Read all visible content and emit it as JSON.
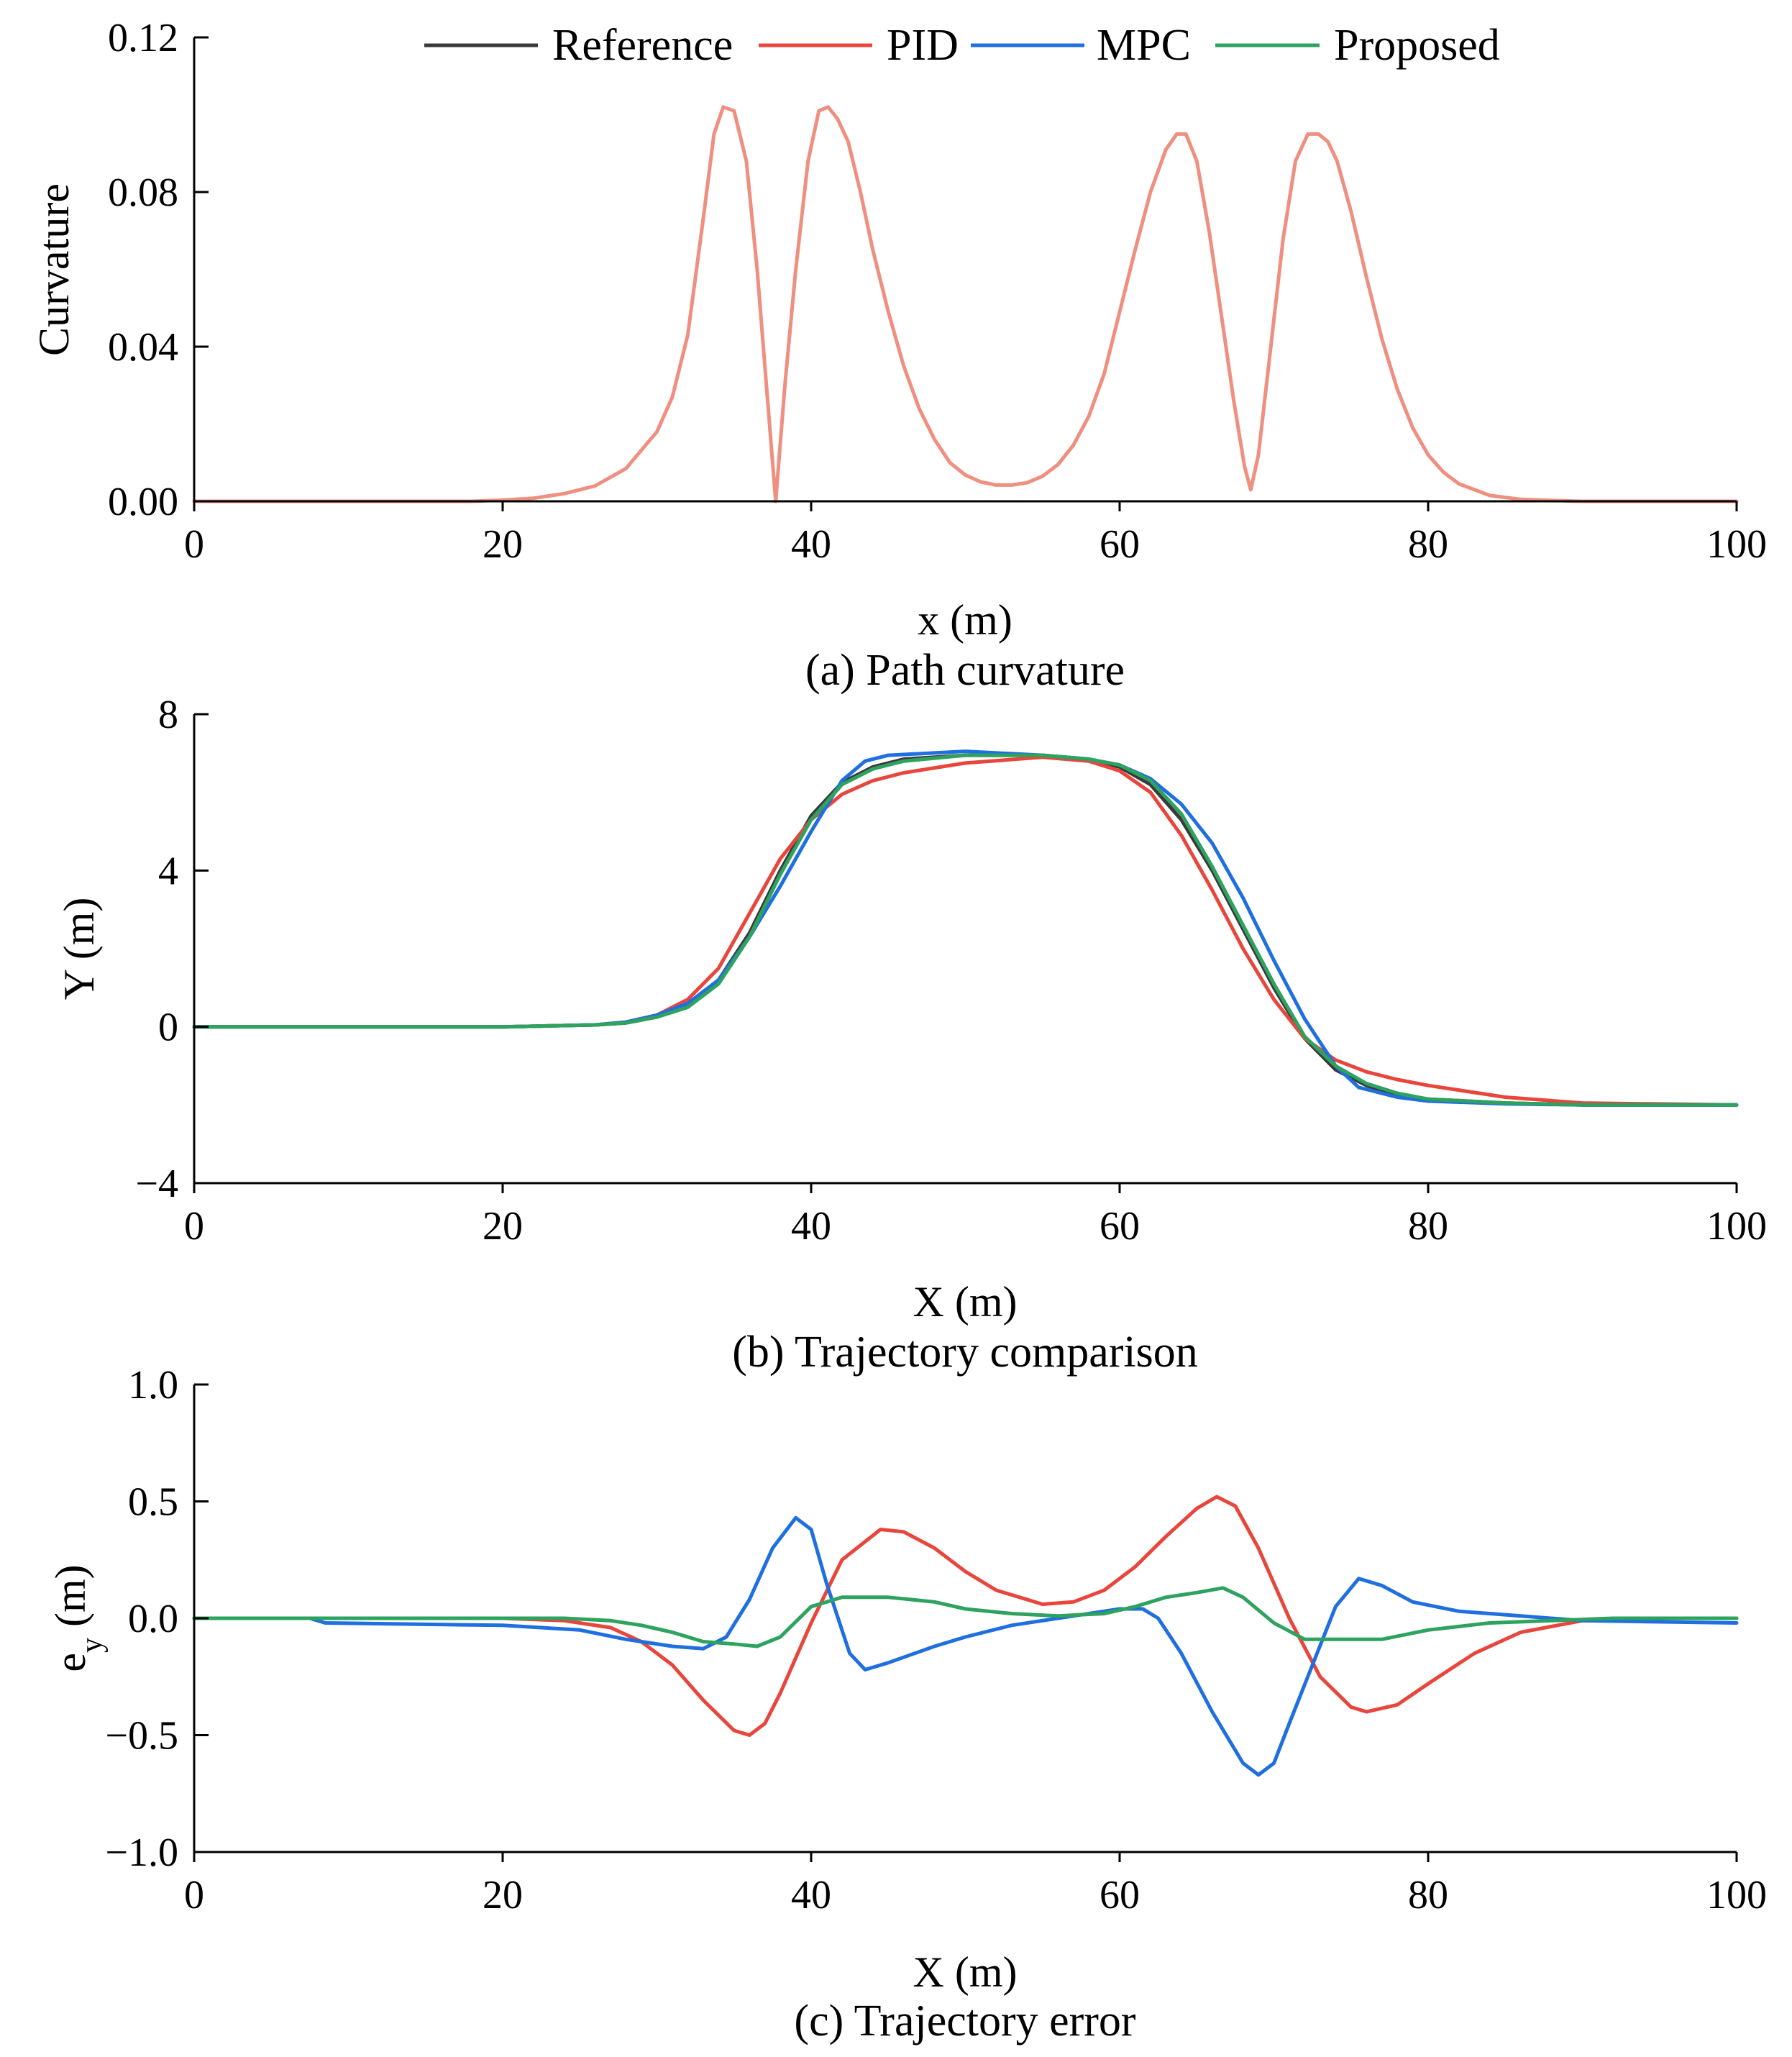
{
  "legend": {
    "entries": [
      {
        "name": "Reference",
        "color": "#3a3a3a"
      },
      {
        "name": "PID",
        "color": "#e8463c"
      },
      {
        "name": "MPC",
        "color": "#1f6fe0"
      },
      {
        "name": "Proposed",
        "color": "#2ea35f"
      }
    ]
  },
  "captions": {
    "a": "(a) Path curvature",
    "b": "(b) Trajectory comparison",
    "c": "(c) Trajectory error"
  },
  "chart_data": [
    {
      "type": "line",
      "title": "(a) Path curvature",
      "xlabel": "x (m)",
      "ylabel": "Curvature",
      "xlim": [
        0,
        100
      ],
      "ylim": [
        0,
        0.12
      ],
      "xticks": [
        0,
        20,
        40,
        60,
        80,
        100
      ],
      "xtick_labels": [
        "0",
        "20",
        "40",
        "60",
        "80",
        "100"
      ],
      "yticks": [
        0,
        0.04,
        0.08,
        0.12
      ],
      "ytick_labels": [
        "0.00",
        "0.04",
        "0.08",
        "0.12"
      ],
      "series": [
        {
          "name": "Curvature",
          "color": "#ef8f80",
          "x": [
            0,
            10,
            18,
            20,
            22,
            24,
            26,
            28,
            30,
            31,
            32,
            33,
            33.7,
            34.3,
            35,
            35.8,
            36.5,
            37.1,
            37.7,
            38.3,
            39,
            39.8,
            40.5,
            41.1,
            41.7,
            42.4,
            43.2,
            44,
            45,
            46,
            47,
            48,
            49,
            50,
            51,
            52,
            53,
            54,
            55,
            56,
            57,
            58,
            59,
            60,
            61,
            62,
            63,
            63.7,
            64.3,
            65,
            65.8,
            66.6,
            67.4,
            68.1,
            68.5,
            69,
            69.8,
            70.6,
            71.4,
            72.2,
            72.9,
            73.5,
            74.1,
            75,
            76,
            77,
            78,
            79,
            80,
            81,
            82,
            84,
            86,
            88,
            90,
            92,
            95,
            100
          ],
          "y": [
            0,
            0,
            0,
            0.0003,
            0.0008,
            0.002,
            0.004,
            0.0085,
            0.018,
            0.027,
            0.043,
            0.073,
            0.095,
            0.102,
            0.101,
            0.088,
            0.06,
            0.03,
            0,
            0.03,
            0.06,
            0.088,
            0.101,
            0.102,
            0.099,
            0.093,
            0.08,
            0.065,
            0.049,
            0.035,
            0.024,
            0.016,
            0.01,
            0.0068,
            0.005,
            0.0042,
            0.0042,
            0.0048,
            0.0065,
            0.0095,
            0.0145,
            0.022,
            0.033,
            0.049,
            0.065,
            0.08,
            0.091,
            0.095,
            0.095,
            0.088,
            0.07,
            0.048,
            0.026,
            0.009,
            0.003,
            0.012,
            0.04,
            0.068,
            0.088,
            0.095,
            0.095,
            0.093,
            0.088,
            0.075,
            0.058,
            0.042,
            0.029,
            0.019,
            0.012,
            0.0075,
            0.0045,
            0.0015,
            0.0005,
            0.0002,
            0,
            0,
            0,
            0
          ]
        }
      ]
    },
    {
      "type": "line",
      "title": "(b) Trajectory comparison",
      "xlabel": "X (m)",
      "ylabel": "Y (m)",
      "xlim": [
        0,
        100
      ],
      "ylim": [
        -4,
        8
      ],
      "xticks": [
        0,
        20,
        40,
        60,
        80,
        100
      ],
      "xtick_labels": [
        "0",
        "20",
        "40",
        "60",
        "80",
        "100"
      ],
      "yticks": [
        -4,
        0,
        4,
        8
      ],
      "ytick_labels": [
        "−4",
        "0",
        "4",
        "8"
      ],
      "series": [
        {
          "name": "Reference",
          "color": "#3a3a3a",
          "x": [
            0,
            20,
            26,
            28,
            30,
            32,
            34,
            36,
            38,
            40,
            42,
            44,
            46,
            50,
            55,
            58,
            60,
            62,
            64,
            66,
            68,
            70,
            72,
            74,
            76,
            78,
            80,
            85,
            90,
            100
          ],
          "y": [
            0,
            0,
            0.05,
            0.1,
            0.25,
            0.55,
            1.2,
            2.4,
            4.0,
            5.4,
            6.25,
            6.65,
            6.85,
            6.95,
            6.95,
            6.85,
            6.65,
            6.2,
            5.3,
            4.0,
            2.5,
            1.0,
            -0.3,
            -1.1,
            -1.5,
            -1.75,
            -1.85,
            -1.95,
            -2.0,
            -2.0
          ]
        },
        {
          "name": "PID",
          "color": "#e8463c",
          "x": [
            0,
            20,
            26,
            28,
            30,
            32,
            34,
            36,
            38,
            40,
            42,
            44,
            46,
            50,
            55,
            58,
            60,
            62,
            64,
            66,
            68,
            70,
            72,
            74,
            76,
            78,
            80,
            85,
            90,
            100
          ],
          "y": [
            0,
            0,
            0.05,
            0.12,
            0.3,
            0.7,
            1.5,
            2.9,
            4.3,
            5.3,
            5.95,
            6.3,
            6.5,
            6.75,
            6.9,
            6.8,
            6.55,
            6.0,
            4.9,
            3.5,
            2.0,
            0.7,
            -0.3,
            -0.85,
            -1.15,
            -1.35,
            -1.5,
            -1.8,
            -1.95,
            -2.0
          ]
        },
        {
          "name": "MPC",
          "color": "#1f6fe0",
          "x": [
            0,
            20,
            26,
            28,
            30,
            32,
            34,
            36,
            38,
            40,
            42,
            43.5,
            45,
            50,
            55,
            58,
            60,
            62,
            64,
            66,
            68,
            70,
            72,
            74,
            75.5,
            78,
            80,
            85,
            90,
            100
          ],
          "y": [
            0,
            0,
            0.05,
            0.12,
            0.3,
            0.6,
            1.2,
            2.3,
            3.6,
            5.0,
            6.3,
            6.8,
            6.95,
            7.05,
            6.95,
            6.85,
            6.7,
            6.35,
            5.7,
            4.7,
            3.3,
            1.7,
            0.2,
            -1.0,
            -1.55,
            -1.8,
            -1.9,
            -1.97,
            -2.0,
            -2.0
          ]
        },
        {
          "name": "Proposed",
          "color": "#2ea35f",
          "x": [
            0,
            20,
            26,
            28,
            30,
            32,
            34,
            36,
            38,
            40,
            42,
            44,
            46,
            50,
            55,
            58,
            60,
            62,
            64,
            66,
            68,
            70,
            72,
            74,
            76,
            78,
            80,
            85,
            90,
            100
          ],
          "y": [
            0,
            0,
            0.05,
            0.1,
            0.25,
            0.5,
            1.1,
            2.3,
            3.9,
            5.3,
            6.2,
            6.6,
            6.8,
            6.95,
            6.95,
            6.85,
            6.7,
            6.3,
            5.45,
            4.1,
            2.6,
            1.1,
            -0.25,
            -1.0,
            -1.45,
            -1.7,
            -1.85,
            -1.95,
            -2.0,
            -2.0
          ]
        }
      ]
    },
    {
      "type": "line",
      "title": "(c) Trajectory error",
      "xlabel": "X (m)",
      "ylabel": "e_y (m)",
      "xlim": [
        0,
        100
      ],
      "ylim": [
        -1.0,
        1.0
      ],
      "xticks": [
        0,
        20,
        40,
        60,
        80,
        100
      ],
      "xtick_labels": [
        "0",
        "20",
        "40",
        "60",
        "80",
        "100"
      ],
      "yticks": [
        -1.0,
        -0.5,
        0,
        0.5,
        1.0
      ],
      "ytick_labels": [
        "−1.0",
        "−0.5",
        "0.0",
        "0.5",
        "1.0"
      ],
      "series": [
        {
          "name": "PID",
          "color": "#e8463c",
          "x": [
            0,
            20,
            24,
            27,
            29,
            31,
            33,
            35,
            36,
            37,
            38,
            40,
            42,
            44.5,
            46,
            48,
            50,
            52,
            55,
            57,
            59,
            61,
            63,
            65,
            66.3,
            67.5,
            69,
            71,
            73,
            75,
            76,
            78,
            80,
            83,
            86,
            90,
            95,
            100
          ],
          "y": [
            0,
            0,
            -0.01,
            -0.04,
            -0.1,
            -0.2,
            -0.35,
            -0.48,
            -0.5,
            -0.45,
            -0.32,
            -0.02,
            0.25,
            0.38,
            0.37,
            0.3,
            0.2,
            0.12,
            0.06,
            0.07,
            0.12,
            0.22,
            0.35,
            0.47,
            0.52,
            0.48,
            0.3,
            0.0,
            -0.25,
            -0.38,
            -0.4,
            -0.37,
            -0.28,
            -0.15,
            -0.06,
            -0.01,
            0.0,
            0.0
          ]
        },
        {
          "name": "MPC",
          "color": "#1f6fe0",
          "x": [
            0,
            7.5,
            8.5,
            20,
            25,
            28,
            31,
            33,
            34.5,
            36,
            37.5,
            39,
            40,
            41,
            42.5,
            43.5,
            45,
            48,
            50,
            53,
            56,
            58,
            60,
            61.5,
            62.5,
            64,
            66,
            68,
            69,
            70,
            71,
            72.5,
            74,
            75.5,
            77,
            79,
            82,
            86,
            90,
            100
          ],
          "y": [
            0,
            0,
            -0.02,
            -0.03,
            -0.05,
            -0.09,
            -0.12,
            -0.13,
            -0.08,
            0.08,
            0.3,
            0.43,
            0.38,
            0.15,
            -0.15,
            -0.22,
            -0.19,
            -0.12,
            -0.08,
            -0.03,
            0.0,
            0.02,
            0.04,
            0.04,
            0.0,
            -0.15,
            -0.4,
            -0.62,
            -0.67,
            -0.62,
            -0.45,
            -0.2,
            0.05,
            0.17,
            0.14,
            0.07,
            0.03,
            0.01,
            -0.01,
            -0.02
          ]
        },
        {
          "name": "Proposed",
          "color": "#2ea35f",
          "x": [
            0,
            20,
            24,
            27,
            29,
            31,
            33,
            35,
            36.5,
            38,
            40,
            42,
            45,
            48,
            50,
            53,
            56,
            59,
            61,
            63,
            65,
            66.7,
            68,
            70,
            72,
            75,
            77,
            80,
            84,
            88,
            92,
            100
          ],
          "y": [
            0,
            0,
            0,
            -0.01,
            -0.03,
            -0.06,
            -0.1,
            -0.11,
            -0.12,
            -0.08,
            0.05,
            0.09,
            0.09,
            0.07,
            0.04,
            0.02,
            0.01,
            0.02,
            0.05,
            0.09,
            0.11,
            0.13,
            0.09,
            -0.02,
            -0.09,
            -0.09,
            -0.09,
            -0.05,
            -0.02,
            -0.01,
            0.0,
            0.0
          ]
        }
      ]
    }
  ]
}
